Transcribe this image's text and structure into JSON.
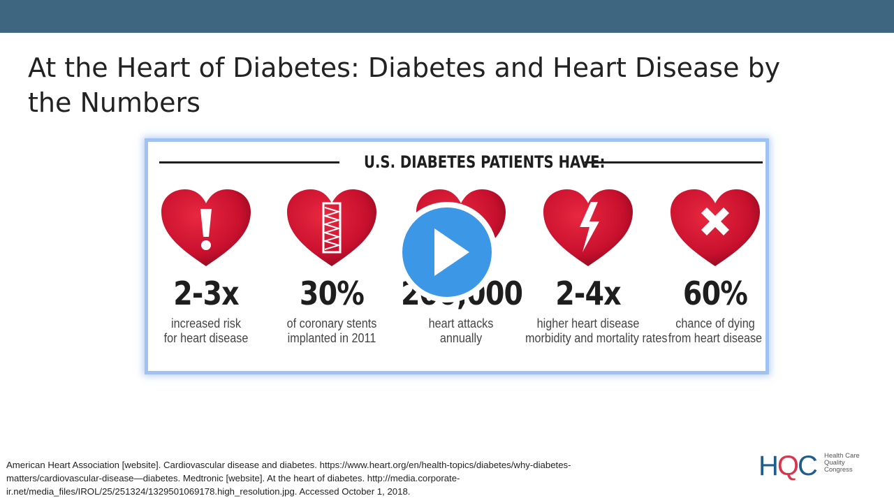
{
  "slide": {
    "title": "At the Heart of Diabetes: Diabetes and Heart Disease by the Numbers"
  },
  "infographic": {
    "heading": "U.S. DIABETES PATIENTS HAVE:",
    "stats": [
      {
        "value": "2-3x",
        "desc_line1": "increased risk",
        "desc_line2": "for heart disease",
        "icon": "exclamation-heart-icon"
      },
      {
        "value": "30%",
        "desc_line1": "of coronary stents",
        "desc_line2": "implanted in 2011",
        "icon": "stent-heart-icon"
      },
      {
        "value": "200,000",
        "desc_line1": "heart attacks",
        "desc_line2": "annually",
        "icon": "heart-icon"
      },
      {
        "value": "2-4x",
        "desc_line1": "higher heart disease",
        "desc_line2": "morbidity and mortality rates",
        "icon": "broken-heart-icon"
      },
      {
        "value": "60%",
        "desc_line1": "chance of dying",
        "desc_line2": "from heart disease",
        "icon": "x-heart-icon"
      }
    ]
  },
  "player": {
    "play_icon": "play-icon",
    "accent_color": "#3c97e6"
  },
  "citation": {
    "line1": "American Heart Association [website]. Cardiovascular disease and diabetes. https://www.heart.org/en/health-topics/diabetes/why-diabetes-",
    "line2": "matters/cardiovascular-disease—diabetes. Medtronic [website]. At the heart of diabetes. http://media.corporate-",
    "line3": "ir.net/media_files/IROL/25/251324/1329501069178.high_resolution.jpg.   Accessed October 1, 2018."
  },
  "logo": {
    "mark_h": "H",
    "mark_q": "Q",
    "mark_c": "C",
    "tagline1": "Health Care",
    "tagline2": "Quality",
    "tagline3": "Congress"
  },
  "colors": {
    "header_bar": "#3f6680",
    "heart_red": "#c8102e",
    "heart_dark": "#9e0b22",
    "text_dark": "#1e1e1e"
  }
}
